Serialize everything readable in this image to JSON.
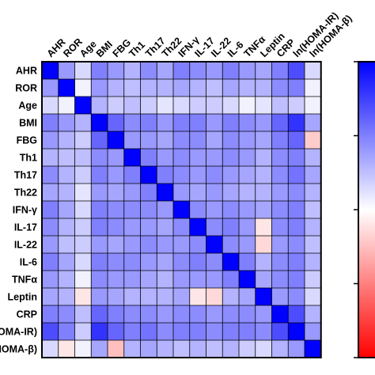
{
  "chart_data": {
    "type": "heatmap",
    "title": "",
    "xlabel": "",
    "ylabel": "",
    "columns": [
      "AHR",
      "ROR",
      "Age",
      "BMI",
      "FBG",
      "Th1",
      "Th17",
      "Th22",
      "IFN-γ",
      "IL-17",
      "IL-22",
      "IL-6",
      "TNFα",
      "Leptin",
      "CRP",
      "ln(HOMA-IR)",
      "ln(HOMA-β)"
    ],
    "rows": [
      "AHR",
      "ROR",
      "Age",
      "BMI",
      "FBG",
      "Th1",
      "Th17",
      "Th22",
      "IFN-γ",
      "IL-17",
      "IL-22",
      "IL-6",
      "TNFα",
      "Leptin",
      "CRP",
      "ln(HOMA-IR)",
      "ln(HOMA-β)"
    ],
    "color_scale": {
      "min": -1,
      "max": 1,
      "low_color": "#ff0000",
      "mid_color": "#ffffff",
      "high_color": "#0000ff"
    },
    "values": [
      [
        1.0,
        0.4,
        0.15,
        0.5,
        0.4,
        0.3,
        0.45,
        0.35,
        0.5,
        0.45,
        0.4,
        0.5,
        0.4,
        0.35,
        0.5,
        0.7,
        0.15
      ],
      [
        0.4,
        1.0,
        0.05,
        0.4,
        0.3,
        0.25,
        0.3,
        0.3,
        0.35,
        0.3,
        0.25,
        0.35,
        0.3,
        0.3,
        0.45,
        0.5,
        0.05
      ],
      [
        0.15,
        0.05,
        1.0,
        0.3,
        0.2,
        0.25,
        0.2,
        0.1,
        0.15,
        0.2,
        0.2,
        0.15,
        0.05,
        0.1,
        0.25,
        0.2,
        0.05
      ],
      [
        0.5,
        0.4,
        0.3,
        1.0,
        0.6,
        0.45,
        0.5,
        0.4,
        0.5,
        0.5,
        0.4,
        0.5,
        0.45,
        0.4,
        0.6,
        0.8,
        0.35
      ],
      [
        0.4,
        0.3,
        0.2,
        0.6,
        1.0,
        0.4,
        0.4,
        0.35,
        0.45,
        0.45,
        0.35,
        0.45,
        0.4,
        0.35,
        0.5,
        0.6,
        -0.2
      ],
      [
        0.3,
        0.25,
        0.25,
        0.45,
        0.4,
        1.0,
        0.5,
        0.4,
        0.45,
        0.4,
        0.4,
        0.45,
        0.4,
        0.3,
        0.45,
        0.5,
        0.3
      ],
      [
        0.45,
        0.3,
        0.2,
        0.5,
        0.4,
        0.5,
        1.0,
        0.5,
        0.45,
        0.4,
        0.45,
        0.4,
        0.35,
        0.3,
        0.45,
        0.55,
        0.35
      ],
      [
        0.35,
        0.3,
        0.1,
        0.4,
        0.35,
        0.4,
        0.5,
        1.0,
        0.4,
        0.35,
        0.4,
        0.35,
        0.3,
        0.3,
        0.4,
        0.45,
        0.3
      ],
      [
        0.5,
        0.35,
        0.15,
        0.5,
        0.45,
        0.45,
        0.45,
        0.4,
        1.0,
        0.45,
        0.4,
        0.45,
        0.4,
        0.35,
        0.45,
        0.5,
        0.25
      ],
      [
        0.45,
        0.3,
        0.2,
        0.5,
        0.45,
        0.4,
        0.4,
        0.35,
        0.45,
        1.0,
        0.45,
        0.5,
        0.4,
        -0.1,
        0.45,
        0.5,
        0.3
      ],
      [
        0.4,
        0.25,
        0.2,
        0.4,
        0.35,
        0.4,
        0.45,
        0.4,
        0.4,
        0.45,
        1.0,
        0.45,
        0.4,
        -0.15,
        0.4,
        0.45,
        0.25
      ],
      [
        0.5,
        0.35,
        0.15,
        0.5,
        0.45,
        0.45,
        0.4,
        0.35,
        0.45,
        0.5,
        0.45,
        1.0,
        0.5,
        0.3,
        0.45,
        0.5,
        0.3
      ],
      [
        0.4,
        0.3,
        0.05,
        0.45,
        0.4,
        0.4,
        0.35,
        0.3,
        0.4,
        0.4,
        0.4,
        0.5,
        1.0,
        0.35,
        0.45,
        0.5,
        0.2
      ],
      [
        0.35,
        0.3,
        -0.1,
        0.4,
        0.35,
        0.3,
        0.3,
        0.3,
        0.35,
        -0.1,
        -0.15,
        0.3,
        0.35,
        1.0,
        0.4,
        0.45,
        0.15
      ],
      [
        0.5,
        0.45,
        0.25,
        0.6,
        0.5,
        0.45,
        0.45,
        0.4,
        0.45,
        0.45,
        0.4,
        0.45,
        0.45,
        0.4,
        1.0,
        0.7,
        0.3
      ],
      [
        0.7,
        0.5,
        0.2,
        0.8,
        0.6,
        0.5,
        0.55,
        0.45,
        0.5,
        0.5,
        0.45,
        0.5,
        0.5,
        0.45,
        0.7,
        1.0,
        0.4
      ],
      [
        0.15,
        -0.1,
        0.05,
        0.35,
        -0.25,
        0.3,
        0.35,
        0.3,
        0.25,
        0.3,
        0.25,
        0.3,
        0.2,
        0.15,
        0.3,
        0.4,
        1.0
      ]
    ]
  }
}
